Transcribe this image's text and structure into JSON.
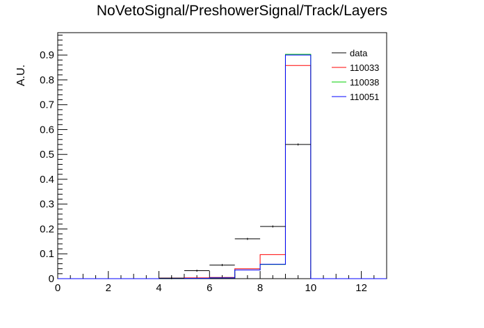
{
  "chart_data": {
    "type": "histogram",
    "title": "NoVetoSignal/PreshowerSignal/Track/Layers",
    "xlabel": "",
    "ylabel": "A.U.",
    "xlim": [
      0,
      13
    ],
    "ylim": [
      0,
      0.99
    ],
    "xticks": [
      0,
      2,
      4,
      6,
      8,
      10,
      12
    ],
    "yticks": [
      0,
      0.1,
      0.2,
      0.3,
      0.4,
      0.5,
      0.6,
      0.7,
      0.8,
      0.9
    ],
    "bin_edges": [
      0,
      1,
      2,
      3,
      4,
      5,
      6,
      7,
      8,
      9,
      10,
      11,
      12,
      13
    ],
    "legend_position": "top-right",
    "series": [
      {
        "name": "data",
        "color": "#000000",
        "style": "points",
        "values": [
          0,
          0,
          0,
          0,
          0.002,
          0.032,
          0.055,
          0.16,
          0.21,
          0.54,
          0,
          0,
          0
        ]
      },
      {
        "name": "110033",
        "color": "#ff0000",
        "style": "step",
        "values": [
          0,
          0,
          0,
          0,
          0.002,
          0.003,
          0.005,
          0.04,
          0.097,
          0.858,
          0,
          0,
          0
        ]
      },
      {
        "name": "110038",
        "color": "#00cc00",
        "style": "step",
        "values": [
          0,
          0,
          0,
          0,
          0.001,
          0.001,
          0.003,
          0.035,
          0.057,
          0.903,
          0,
          0,
          0
        ]
      },
      {
        "name": "110051",
        "color": "#0000ff",
        "style": "step",
        "values": [
          0,
          0,
          0,
          0,
          0.001,
          0.001,
          0.003,
          0.035,
          0.058,
          0.9,
          0,
          0,
          0
        ]
      }
    ]
  }
}
